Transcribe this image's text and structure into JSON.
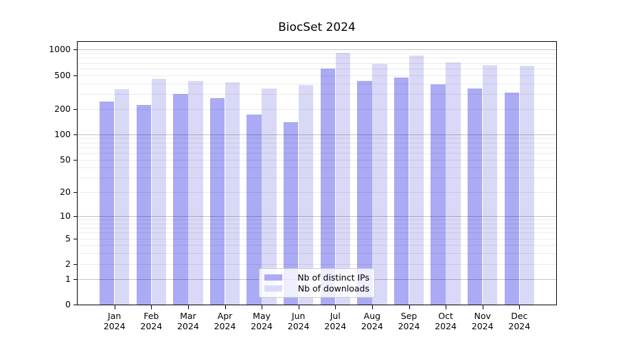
{
  "title": "BiocSet 2024",
  "chart_data": {
    "type": "bar",
    "title": "BiocSet 2024",
    "categories": [
      "Jan 2024",
      "Feb 2024",
      "Mar 2024",
      "Apr 2024",
      "May 2024",
      "Jun 2024",
      "Jul 2024",
      "Aug 2024",
      "Sep 2024",
      "Oct 2024",
      "Nov 2024",
      "Dec 2024"
    ],
    "series": [
      {
        "name": "Nb of distinct IPs",
        "color": "#aaaaf5",
        "values": [
          245,
          225,
          303,
          270,
          173,
          139,
          602,
          430,
          466,
          388,
          346,
          312
        ]
      },
      {
        "name": "Nb of downloads",
        "color": "#d9d9f7",
        "values": [
          343,
          452,
          430,
          409,
          348,
          383,
          920,
          678,
          848,
          710,
          660,
          645
        ]
      }
    ],
    "xlabel": "",
    "ylabel": "",
    "y_scale": "log1p",
    "y_ticks": [
      0,
      1,
      2,
      5,
      10,
      20,
      50,
      100,
      200,
      500,
      1000
    ],
    "ylim": [
      0,
      1238
    ],
    "grid": "horizontal, major lines at powers of 10, faint minor log lines",
    "legend_position": "lower center"
  },
  "colors": {
    "background": "#ffffff",
    "bar_distinct_ips": "#aaaaf5",
    "bar_downloads": "#d9d9f7",
    "grid_major": "rgba(0,0,0,0.24)",
    "grid_minor": "rgba(0,0,0,0.08)",
    "spine": "#000000",
    "text": "#000000",
    "legend_border": "#cccccc",
    "legend_background": "rgba(255,255,255,0.8)"
  }
}
